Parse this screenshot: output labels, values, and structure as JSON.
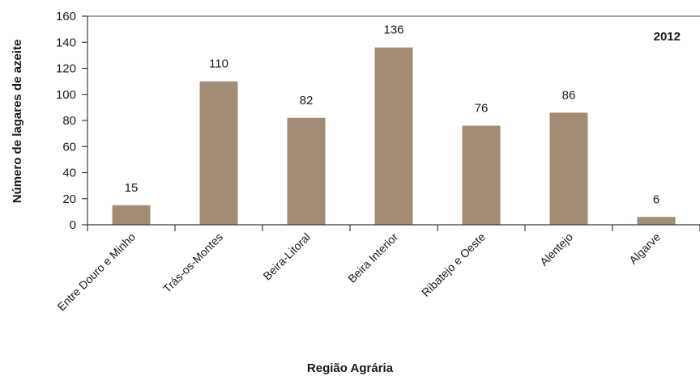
{
  "chart_data": {
    "type": "bar",
    "annotation": "2012",
    "xlabel": "Região Agrária",
    "ylabel": "Número de lagares de azeite",
    "ylim": [
      0,
      160
    ],
    "yticks": [
      0,
      20,
      40,
      60,
      80,
      100,
      120,
      140,
      160
    ],
    "categories": [
      "Entre Douro e Minho",
      "Trás-os-Montes",
      "Beira-Litoral",
      "Beira Interior",
      "Ribatejo e Oeste",
      "Alentejo",
      "Algarve"
    ],
    "values": [
      15,
      110,
      82,
      136,
      76,
      86,
      6
    ],
    "data_labels": [
      "15",
      "110",
      "82",
      "136",
      "76",
      "86",
      "6"
    ],
    "grid": false,
    "legend": "none",
    "colors": {
      "bar": "#a38c76",
      "axis": "#3a3a3a",
      "top_border": "#6a6a6a"
    }
  }
}
